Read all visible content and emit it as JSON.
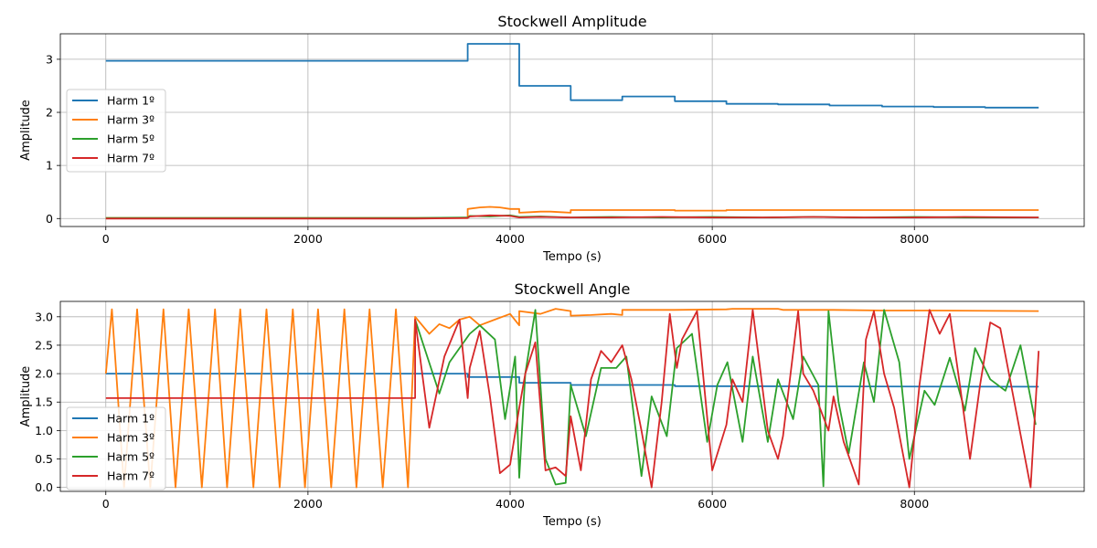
{
  "colors": [
    "#1f77b4",
    "#ff7f0e",
    "#2ca02c",
    "#d62728"
  ],
  "chart_data": [
    {
      "type": "line",
      "title": "Stockwell Amplitude",
      "xlabel": "Tempo (s)",
      "ylabel": "Amplitude",
      "xlim": [
        -450,
        9680
      ],
      "ylim": [
        -0.15,
        3.48
      ],
      "xticks": [
        0,
        2000,
        4000,
        6000,
        8000
      ],
      "yticks": [
        0,
        1,
        2,
        3
      ],
      "grid": true,
      "legend": "center-left",
      "series": [
        {
          "name": "Harm 1º",
          "step": true,
          "x": [
            0,
            3580,
            3580,
            4090,
            4090,
            4600,
            4600,
            5110,
            5110,
            5630,
            5630,
            6140,
            6140,
            6650,
            6650,
            7160,
            7160,
            7680,
            7680,
            8190,
            8190,
            8700,
            8700,
            9230
          ],
          "y": [
            2.97,
            2.97,
            3.29,
            3.29,
            2.5,
            2.5,
            2.23,
            2.23,
            2.3,
            2.3,
            2.21,
            2.21,
            2.16,
            2.16,
            2.15,
            2.15,
            2.13,
            2.13,
            2.11,
            2.11,
            2.1,
            2.1,
            2.09,
            2.09
          ]
        },
        {
          "name": "Harm 3º",
          "x": [
            0,
            3580,
            3580,
            3700,
            3800,
            3900,
            4000,
            4090,
            4090,
            4200,
            4300,
            4400,
            4500,
            4600,
            4600,
            5110,
            5110,
            5630,
            5630,
            6140,
            6140,
            9230
          ],
          "y": [
            0.01,
            0.01,
            0.18,
            0.21,
            0.22,
            0.21,
            0.18,
            0.18,
            0.11,
            0.12,
            0.13,
            0.13,
            0.12,
            0.11,
            0.16,
            0.16,
            0.16,
            0.16,
            0.15,
            0.15,
            0.16,
            0.16
          ]
        },
        {
          "name": "Harm 5º",
          "x": [
            0,
            3060,
            3580,
            3600,
            3800,
            4000,
            4090,
            4300,
            4600,
            5000,
            5500,
            6000,
            6500,
            7000,
            7500,
            8000,
            8500,
            9230
          ],
          "y": [
            0.01,
            0.01,
            0.02,
            0.05,
            0.04,
            0.06,
            0.03,
            0.04,
            0.02,
            0.03,
            0.02,
            0.03,
            0.02,
            0.03,
            0.02,
            0.03,
            0.02,
            0.02
          ]
        },
        {
          "name": "Harm 7º",
          "x": [
            0,
            3060,
            3580,
            3600,
            3800,
            4000,
            4090,
            4300,
            4600,
            5000,
            5500,
            6000,
            6500,
            7000,
            7500,
            8000,
            8500,
            9230
          ],
          "y": [
            0.0,
            0.0,
            0.01,
            0.04,
            0.06,
            0.05,
            0.02,
            0.03,
            0.02,
            0.02,
            0.03,
            0.02,
            0.02,
            0.03,
            0.02,
            0.02,
            0.03,
            0.02
          ]
        }
      ]
    },
    {
      "type": "line",
      "title": "Stockwell Angle",
      "xlabel": "Tempo (s)",
      "ylabel": "Amplitude",
      "xlim": [
        -450,
        9680
      ],
      "ylim": [
        -0.07,
        3.27
      ],
      "xticks": [
        0,
        2000,
        4000,
        6000,
        8000
      ],
      "yticks": [
        0.0,
        0.5,
        1.0,
        1.5,
        2.0,
        2.5,
        3.0
      ],
      "grid": true,
      "legend": "lower-left",
      "series": [
        {
          "name": "Harm 1º",
          "x": [
            0,
            3580,
            3580,
            4090,
            4090,
            4600,
            4600,
            5630,
            5630,
            9230
          ],
          "y": [
            2.0,
            2.0,
            1.94,
            1.94,
            1.84,
            1.84,
            1.8,
            1.8,
            1.78,
            1.77
          ]
        },
        {
          "name": "Harm 3º",
          "x": [
            0,
            60,
            180,
            310,
            440,
            570,
            690,
            820,
            950,
            1080,
            1200,
            1330,
            1460,
            1590,
            1720,
            1850,
            1970,
            2100,
            2230,
            2360,
            2480,
            2610,
            2740,
            2870,
            2990,
            3060,
            3200,
            3300,
            3400,
            3500,
            3600,
            3700,
            3850,
            4000,
            4090,
            4090,
            4300,
            4450,
            4600,
            4600,
            4800,
            5000,
            5110,
            5110,
            5630,
            6140,
            6200,
            6650,
            6700,
            7200,
            7700,
            8200,
            9230
          ],
          "y": [
            2.0,
            3.13,
            0.0,
            3.13,
            0.0,
            3.13,
            0.0,
            3.13,
            0.0,
            3.13,
            0.0,
            3.13,
            0.0,
            3.13,
            0.0,
            3.13,
            0.0,
            3.13,
            0.0,
            3.13,
            0.0,
            3.13,
            0.0,
            3.13,
            0.0,
            3.0,
            2.7,
            2.87,
            2.8,
            2.95,
            3.0,
            2.85,
            2.95,
            3.05,
            2.85,
            3.1,
            3.05,
            3.14,
            3.1,
            3.02,
            3.03,
            3.05,
            3.03,
            3.12,
            3.12,
            3.13,
            3.14,
            3.14,
            3.12,
            3.12,
            3.11,
            3.11,
            3.1
          ]
        },
        {
          "name": "Harm 5º",
          "x": [
            3060,
            3300,
            3400,
            3600,
            3700,
            3850,
            3950,
            4050,
            4090,
            4150,
            4250,
            4350,
            4450,
            4550,
            4600,
            4750,
            4900,
            5050,
            5150,
            5300,
            5400,
            5550,
            5650,
            5800,
            5950,
            6050,
            6150,
            6300,
            6400,
            6550,
            6650,
            6800,
            6900,
            7050,
            7100,
            7150,
            7250,
            7350,
            7500,
            7600,
            7700,
            7850,
            7950,
            8100,
            8200,
            8350,
            8500,
            8600,
            8750,
            8900,
            9050,
            9200
          ],
          "y": [
            2.95,
            1.65,
            2.2,
            2.7,
            2.85,
            2.6,
            1.2,
            2.3,
            0.17,
            2.0,
            3.12,
            0.5,
            0.05,
            0.08,
            1.8,
            0.9,
            2.1,
            2.1,
            2.3,
            0.2,
            1.6,
            0.9,
            2.45,
            2.7,
            0.8,
            1.8,
            2.2,
            0.8,
            2.3,
            0.8,
            1.9,
            1.2,
            2.3,
            1.8,
            0.02,
            3.1,
            1.5,
            0.6,
            2.2,
            1.5,
            3.12,
            2.2,
            0.5,
            1.7,
            1.45,
            2.28,
            1.35,
            2.45,
            1.9,
            1.7,
            2.5,
            1.1
          ]
        },
        {
          "name": "Harm 7º",
          "x": [
            0,
            3060,
            3060,
            3200,
            3350,
            3500,
            3580,
            3600,
            3700,
            3800,
            3900,
            4000,
            4090,
            4150,
            4250,
            4350,
            4450,
            4550,
            4600,
            4700,
            4800,
            4900,
            5000,
            5110,
            5200,
            5300,
            5400,
            5500,
            5580,
            5650,
            5700,
            5850,
            6000,
            6140,
            6200,
            6300,
            6400,
            6550,
            6650,
            6700,
            6850,
            6900,
            7000,
            7150,
            7200,
            7300,
            7450,
            7520,
            7600,
            7700,
            7800,
            7950,
            8050,
            8150,
            8250,
            8350,
            8450,
            8550,
            8650,
            8750,
            8850,
            9000,
            9150,
            9230
          ],
          "y": [
            1.57,
            1.57,
            2.95,
            1.05,
            2.3,
            2.95,
            1.57,
            2.1,
            2.75,
            1.6,
            0.25,
            0.4,
            1.4,
            2.0,
            2.55,
            0.3,
            0.35,
            0.2,
            1.25,
            0.3,
            1.9,
            2.4,
            2.2,
            2.5,
            1.9,
            1.0,
            0.0,
            1.5,
            3.05,
            2.1,
            2.6,
            3.1,
            0.3,
            1.1,
            1.9,
            1.5,
            3.12,
            1.0,
            0.5,
            0.9,
            3.1,
            2.0,
            1.7,
            1.0,
            1.6,
            0.8,
            0.05,
            2.6,
            3.1,
            2.0,
            1.4,
            0.0,
            1.8,
            3.12,
            2.7,
            3.05,
            1.8,
            0.5,
            1.8,
            2.9,
            2.8,
            1.4,
            0.0,
            2.4
          ]
        }
      ]
    }
  ]
}
